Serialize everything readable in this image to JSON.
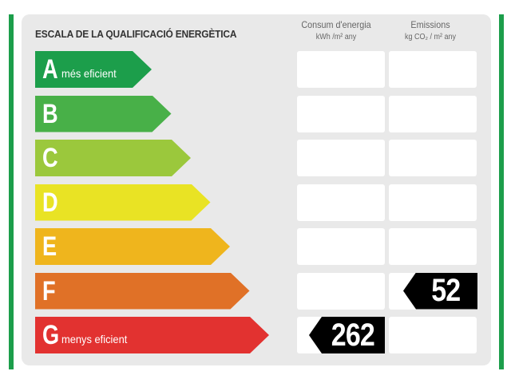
{
  "title": "ESCALA DE LA QUALIFICACIÓ ENERGÈTICA",
  "columns": {
    "consum": {
      "label": "Consum d'energia",
      "unit": "kWh /m² any"
    },
    "emissions": {
      "label": "Emissions",
      "unit": "kg CO₂ / m² any"
    }
  },
  "ratings": [
    {
      "letter": "A",
      "caption": "més eficient",
      "color": "#1c9e4b",
      "consum": "",
      "emissions": ""
    },
    {
      "letter": "B",
      "caption": "",
      "color": "#48b048",
      "consum": "",
      "emissions": ""
    },
    {
      "letter": "C",
      "caption": "",
      "color": "#9bc83c",
      "consum": "",
      "emissions": ""
    },
    {
      "letter": "D",
      "caption": "",
      "color": "#e9e324",
      "consum": "",
      "emissions": ""
    },
    {
      "letter": "E",
      "caption": "",
      "color": "#efb51d",
      "consum": "",
      "emissions": ""
    },
    {
      "letter": "F",
      "caption": "",
      "color": "#e07127",
      "consum": "",
      "emissions": "52"
    },
    {
      "letter": "G",
      "caption": "menys eficient",
      "color": "#e23230",
      "consum": "262",
      "emissions": ""
    }
  ],
  "colors": {
    "frame": "#1c9e4b",
    "panel": "#e9e9e9",
    "indicator": "#000000"
  }
}
